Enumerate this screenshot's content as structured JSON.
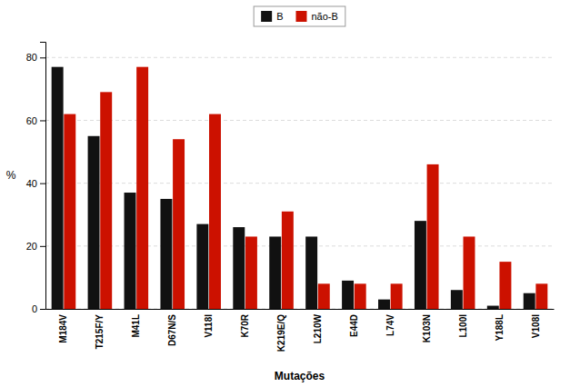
{
  "chart_data": {
    "type": "bar",
    "xlabel": "Mutações",
    "ylabel": "%",
    "categories": [
      "M184V",
      "T215F/Y",
      "M41L",
      "D67N/S",
      "V118I",
      "K70R",
      "K219E/Q",
      "L210W",
      "E44D",
      "L74V",
      "K103N",
      "L100I",
      "Y188L",
      "V108I"
    ],
    "series": [
      {
        "name": "B",
        "color": "#111111",
        "values": [
          77,
          55,
          37,
          35,
          27,
          26,
          23,
          23,
          9,
          3,
          28,
          6,
          1,
          5
        ]
      },
      {
        "name": "não-B",
        "color": "#cc1100",
        "values": [
          62,
          69,
          77,
          54,
          62,
          23,
          31,
          8,
          8,
          8,
          46,
          23,
          15,
          8
        ]
      }
    ],
    "ylim": [
      0,
      85
    ],
    "yticks": [
      0,
      20,
      40,
      60,
      80
    ],
    "grid": true,
    "legend": "top"
  }
}
